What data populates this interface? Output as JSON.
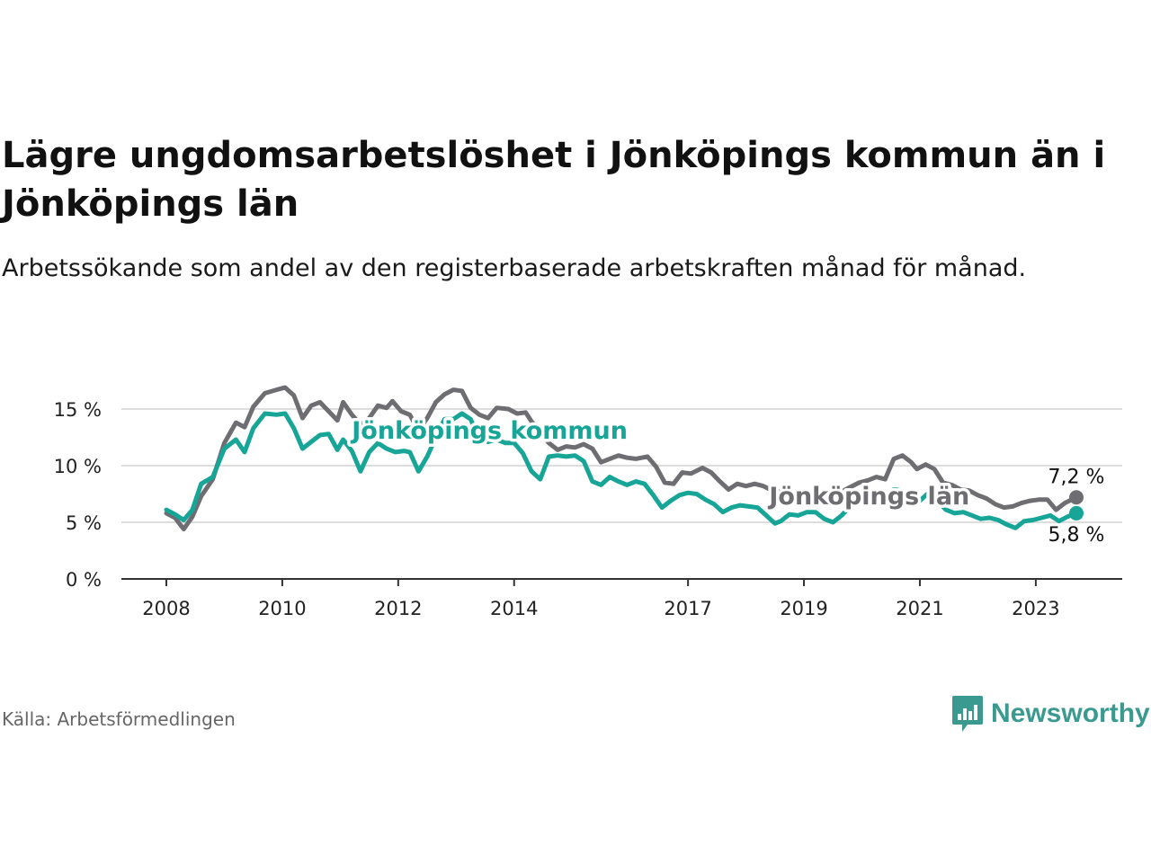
{
  "title": "Lägre ungdomsarbetslöshet i Jönköpings kommun än i Jönköpings län",
  "subtitle": "Arbetssökande som andel av den registerbaserade arbetskraften månad för månad.",
  "source": "Källa: Arbetsförmedlingen",
  "brand": {
    "name": "Newsworthy",
    "color": "#3a9a90",
    "icon": "bar-chart-icon"
  },
  "colors": {
    "kommun": "#16a596",
    "lan": "#6e6e72",
    "grid": "#dddddd",
    "axis": "#333333"
  },
  "chart_data": {
    "type": "line",
    "title": "Lägre ungdomsarbetslöshet i Jönköpings kommun än i Jönköpings län",
    "xlabel": "",
    "ylabel": "",
    "ylim": [
      0,
      17
    ],
    "xlim": [
      2007.7,
      2024.3
    ],
    "yticks": [
      {
        "v": 0,
        "label": "0 %"
      },
      {
        "v": 5,
        "label": "5 %"
      },
      {
        "v": 10,
        "label": "10 %"
      },
      {
        "v": 15,
        "label": "15 %"
      }
    ],
    "xticks": [
      {
        "v": 2008,
        "label": "2008"
      },
      {
        "v": 2010,
        "label": "2010"
      },
      {
        "v": 2012,
        "label": "2012"
      },
      {
        "v": 2014,
        "label": "2014"
      },
      {
        "v": 2017,
        "label": "2017"
      },
      {
        "v": 2019,
        "label": "2019"
      },
      {
        "v": 2021,
        "label": "2021"
      },
      {
        "v": 2023,
        "label": "2023"
      }
    ],
    "grid": true,
    "series": [
      {
        "name": "Jönköpings län",
        "key": "lan",
        "label": "Jönköpings län",
        "label_pos": [
          2018.4,
          6.6
        ],
        "end_label": "7,2 %",
        "points": [
          [
            2008.0,
            5.8
          ],
          [
            2008.15,
            5.4
          ],
          [
            2008.3,
            4.4
          ],
          [
            2008.45,
            5.5
          ],
          [
            2008.6,
            7.3
          ],
          [
            2008.8,
            8.8
          ],
          [
            2009.0,
            12.0
          ],
          [
            2009.2,
            13.8
          ],
          [
            2009.35,
            13.4
          ],
          [
            2009.5,
            15.2
          ],
          [
            2009.7,
            16.4
          ],
          [
            2009.9,
            16.7
          ],
          [
            2010.05,
            16.9
          ],
          [
            2010.2,
            16.2
          ],
          [
            2010.35,
            14.2
          ],
          [
            2010.5,
            15.3
          ],
          [
            2010.65,
            15.6
          ],
          [
            2010.8,
            14.8
          ],
          [
            2010.95,
            14.0
          ],
          [
            2011.05,
            15.6
          ],
          [
            2011.2,
            14.5
          ],
          [
            2011.35,
            13.6
          ],
          [
            2011.5,
            14.2
          ],
          [
            2011.65,
            15.3
          ],
          [
            2011.8,
            15.1
          ],
          [
            2011.9,
            15.7
          ],
          [
            2012.05,
            14.8
          ],
          [
            2012.2,
            14.5
          ],
          [
            2012.35,
            13.1
          ],
          [
            2012.5,
            14.2
          ],
          [
            2012.65,
            15.6
          ],
          [
            2012.8,
            16.3
          ],
          [
            2012.95,
            16.7
          ],
          [
            2013.1,
            16.6
          ],
          [
            2013.25,
            15.1
          ],
          [
            2013.4,
            14.5
          ],
          [
            2013.55,
            14.2
          ],
          [
            2013.7,
            15.1
          ],
          [
            2013.9,
            15.0
          ],
          [
            2014.05,
            14.6
          ],
          [
            2014.2,
            14.7
          ],
          [
            2014.3,
            13.9
          ],
          [
            2014.45,
            13.0
          ],
          [
            2014.6,
            12.0
          ],
          [
            2014.75,
            11.4
          ],
          [
            2014.9,
            11.7
          ],
          [
            2015.05,
            11.6
          ],
          [
            2015.2,
            11.9
          ],
          [
            2015.35,
            11.5
          ],
          [
            2015.5,
            10.3
          ],
          [
            2015.65,
            10.6
          ],
          [
            2015.8,
            10.9
          ],
          [
            2015.95,
            10.7
          ],
          [
            2016.1,
            10.6
          ],
          [
            2016.3,
            10.8
          ],
          [
            2016.45,
            9.9
          ],
          [
            2016.6,
            8.5
          ],
          [
            2016.75,
            8.4
          ],
          [
            2016.9,
            9.4
          ],
          [
            2017.05,
            9.3
          ],
          [
            2017.25,
            9.8
          ],
          [
            2017.4,
            9.4
          ],
          [
            2017.55,
            8.6
          ],
          [
            2017.7,
            7.9
          ],
          [
            2017.85,
            8.4
          ],
          [
            2018.0,
            8.2
          ],
          [
            2018.15,
            8.4
          ],
          [
            2018.3,
            8.2
          ],
          [
            2018.45,
            7.8
          ],
          [
            2018.6,
            7.7
          ],
          [
            2018.75,
            7.1
          ],
          [
            2018.9,
            7.4
          ],
          [
            2019.05,
            7.5
          ],
          [
            2019.2,
            7.3
          ],
          [
            2019.35,
            7.3
          ],
          [
            2019.5,
            7.0
          ],
          [
            2019.65,
            7.7
          ],
          [
            2019.8,
            8.1
          ],
          [
            2019.95,
            8.5
          ],
          [
            2020.1,
            8.7
          ],
          [
            2020.25,
            9.0
          ],
          [
            2020.4,
            8.8
          ],
          [
            2020.55,
            10.6
          ],
          [
            2020.7,
            10.9
          ],
          [
            2020.85,
            10.3
          ],
          [
            2020.95,
            9.7
          ],
          [
            2021.1,
            10.1
          ],
          [
            2021.25,
            9.7
          ],
          [
            2021.4,
            8.5
          ],
          [
            2021.55,
            8.3
          ],
          [
            2021.7,
            7.9
          ],
          [
            2021.85,
            7.8
          ],
          [
            2022.0,
            7.4
          ],
          [
            2022.15,
            7.1
          ],
          [
            2022.3,
            6.6
          ],
          [
            2022.45,
            6.3
          ],
          [
            2022.6,
            6.4
          ],
          [
            2022.75,
            6.7
          ],
          [
            2022.9,
            6.9
          ],
          [
            2023.05,
            7.0
          ],
          [
            2023.2,
            7.0
          ],
          [
            2023.35,
            6.1
          ],
          [
            2023.5,
            6.7
          ],
          [
            2023.7,
            7.2
          ]
        ]
      },
      {
        "name": "Jönköpings kommun",
        "key": "kommun",
        "label": "Jönköpings kommun",
        "label_pos": [
          2011.2,
          12.4
        ],
        "end_label": "5,8 %",
        "points": [
          [
            2008.0,
            6.1
          ],
          [
            2008.15,
            5.7
          ],
          [
            2008.3,
            5.2
          ],
          [
            2008.45,
            6.1
          ],
          [
            2008.6,
            8.4
          ],
          [
            2008.8,
            9.0
          ],
          [
            2009.0,
            11.5
          ],
          [
            2009.2,
            12.3
          ],
          [
            2009.35,
            11.2
          ],
          [
            2009.5,
            13.3
          ],
          [
            2009.7,
            14.6
          ],
          [
            2009.9,
            14.5
          ],
          [
            2010.05,
            14.6
          ],
          [
            2010.2,
            13.3
          ],
          [
            2010.35,
            11.5
          ],
          [
            2010.5,
            12.1
          ],
          [
            2010.65,
            12.7
          ],
          [
            2010.8,
            12.8
          ],
          [
            2010.95,
            11.4
          ],
          [
            2011.05,
            12.3
          ],
          [
            2011.2,
            11.3
          ],
          [
            2011.35,
            9.5
          ],
          [
            2011.5,
            11.2
          ],
          [
            2011.65,
            12.0
          ],
          [
            2011.8,
            11.5
          ],
          [
            2011.95,
            11.2
          ],
          [
            2012.1,
            11.3
          ],
          [
            2012.2,
            11.2
          ],
          [
            2012.35,
            9.5
          ],
          [
            2012.5,
            10.8
          ],
          [
            2012.65,
            12.5
          ],
          [
            2012.8,
            14.1
          ],
          [
            2012.95,
            14.1
          ],
          [
            2013.1,
            14.6
          ],
          [
            2013.25,
            14.1
          ],
          [
            2013.4,
            12.3
          ],
          [
            2013.55,
            12.1
          ],
          [
            2013.7,
            12.3
          ],
          [
            2013.85,
            12.0
          ],
          [
            2014.0,
            12.0
          ],
          [
            2014.15,
            11.1
          ],
          [
            2014.3,
            9.5
          ],
          [
            2014.45,
            8.8
          ],
          [
            2014.6,
            10.8
          ],
          [
            2014.75,
            10.9
          ],
          [
            2014.9,
            10.8
          ],
          [
            2015.05,
            10.9
          ],
          [
            2015.2,
            10.4
          ],
          [
            2015.35,
            8.6
          ],
          [
            2015.5,
            8.3
          ],
          [
            2015.65,
            9.0
          ],
          [
            2015.8,
            8.6
          ],
          [
            2015.95,
            8.3
          ],
          [
            2016.1,
            8.6
          ],
          [
            2016.25,
            8.4
          ],
          [
            2016.4,
            7.4
          ],
          [
            2016.55,
            6.3
          ],
          [
            2016.7,
            6.9
          ],
          [
            2016.85,
            7.4
          ],
          [
            2017.0,
            7.6
          ],
          [
            2017.15,
            7.5
          ],
          [
            2017.3,
            7.0
          ],
          [
            2017.45,
            6.6
          ],
          [
            2017.6,
            5.9
          ],
          [
            2017.75,
            6.3
          ],
          [
            2017.9,
            6.5
          ],
          [
            2018.05,
            6.4
          ],
          [
            2018.2,
            6.3
          ],
          [
            2018.35,
            5.6
          ],
          [
            2018.5,
            4.9
          ],
          [
            2018.6,
            5.1
          ],
          [
            2018.75,
            5.7
          ],
          [
            2018.9,
            5.6
          ],
          [
            2019.05,
            5.9
          ],
          [
            2019.2,
            5.9
          ],
          [
            2019.35,
            5.3
          ],
          [
            2019.5,
            5.0
          ],
          [
            2019.65,
            5.6
          ],
          [
            2019.8,
            6.4
          ],
          [
            2019.95,
            6.8
          ],
          [
            2020.1,
            7.0
          ],
          [
            2020.25,
            7.0
          ],
          [
            2020.4,
            7.3
          ],
          [
            2020.55,
            7.9
          ],
          [
            2020.7,
            7.8
          ],
          [
            2020.85,
            7.3
          ],
          [
            2021.0,
            6.9
          ],
          [
            2021.15,
            7.6
          ],
          [
            2021.3,
            6.9
          ],
          [
            2021.45,
            6.1
          ],
          [
            2021.6,
            5.8
          ],
          [
            2021.75,
            5.9
          ],
          [
            2021.9,
            5.6
          ],
          [
            2022.05,
            5.3
          ],
          [
            2022.2,
            5.4
          ],
          [
            2022.35,
            5.2
          ],
          [
            2022.5,
            4.8
          ],
          [
            2022.65,
            4.5
          ],
          [
            2022.8,
            5.1
          ],
          [
            2022.95,
            5.2
          ],
          [
            2023.1,
            5.4
          ],
          [
            2023.25,
            5.6
          ],
          [
            2023.4,
            5.1
          ],
          [
            2023.55,
            5.5
          ],
          [
            2023.7,
            5.8
          ]
        ]
      }
    ]
  }
}
